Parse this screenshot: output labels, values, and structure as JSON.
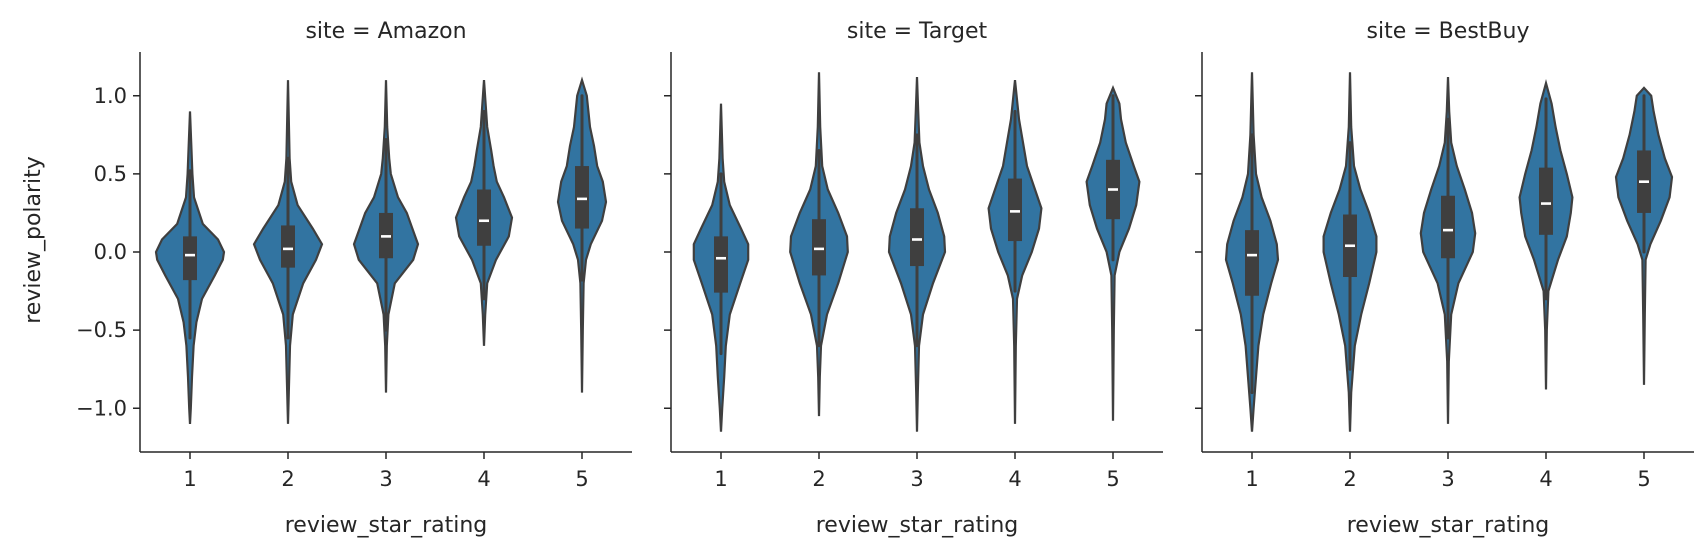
{
  "chart_data": {
    "type": "violin",
    "xlabel": "review_star_rating",
    "ylabel": "review_polarity",
    "ylim": [
      -1.28,
      1.28
    ],
    "yticks": [
      -1.0,
      -0.5,
      0.0,
      0.5,
      1.0
    ],
    "ytick_labels": [
      "−1.0",
      "−0.5",
      "0.0",
      "0.5",
      "1.0"
    ],
    "categories": [
      "1",
      "2",
      "3",
      "4",
      "5"
    ],
    "color": "#3274a1",
    "edge_color": "#3f3f3f",
    "grid": false,
    "panels": [
      {
        "title": "site = Amazon",
        "violins": [
          {
            "rating": "1",
            "min": -1.1,
            "max": 0.9,
            "q1": -0.18,
            "median": -0.02,
            "q3": 0.1,
            "whisker_low": -0.55,
            "whisker_high": 0.52,
            "profile": [
              [
                -1.1,
                0
              ],
              [
                -1.0,
                0.02
              ],
              [
                -0.8,
                0.05
              ],
              [
                -0.6,
                0.09
              ],
              [
                -0.45,
                0.16
              ],
              [
                -0.3,
                0.3
              ],
              [
                -0.15,
                0.62
              ],
              [
                -0.05,
                0.82
              ],
              [
                0.0,
                0.85
              ],
              [
                0.08,
                0.7
              ],
              [
                0.18,
                0.32
              ],
              [
                0.35,
                0.1
              ],
              [
                0.5,
                0.06
              ],
              [
                0.7,
                0.03
              ],
              [
                0.9,
                0
              ]
            ]
          },
          {
            "rating": "2",
            "min": -1.1,
            "max": 1.1,
            "q1": -0.1,
            "median": 0.02,
            "q3": 0.17,
            "whisker_low": -0.55,
            "whisker_high": 0.6,
            "profile": [
              [
                -1.1,
                0
              ],
              [
                -0.9,
                0.02
              ],
              [
                -0.6,
                0.05
              ],
              [
                -0.4,
                0.12
              ],
              [
                -0.2,
                0.38
              ],
              [
                -0.05,
                0.7
              ],
              [
                0.05,
                0.85
              ],
              [
                0.15,
                0.62
              ],
              [
                0.3,
                0.24
              ],
              [
                0.45,
                0.08
              ],
              [
                0.6,
                0.04
              ],
              [
                0.85,
                0.02
              ],
              [
                1.1,
                0
              ]
            ]
          },
          {
            "rating": "3",
            "min": -0.9,
            "max": 1.1,
            "q1": -0.04,
            "median": 0.1,
            "q3": 0.25,
            "whisker_low": -0.5,
            "whisker_high": 0.72,
            "profile": [
              [
                -0.9,
                0
              ],
              [
                -0.6,
                0.02
              ],
              [
                -0.4,
                0.06
              ],
              [
                -0.2,
                0.22
              ],
              [
                -0.05,
                0.68
              ],
              [
                0.05,
                0.8
              ],
              [
                0.15,
                0.66
              ],
              [
                0.25,
                0.52
              ],
              [
                0.35,
                0.3
              ],
              [
                0.5,
                0.12
              ],
              [
                0.6,
                0.08
              ],
              [
                0.8,
                0.03
              ],
              [
                1.1,
                0
              ]
            ]
          },
          {
            "rating": "4",
            "min": -0.6,
            "max": 1.1,
            "q1": 0.04,
            "median": 0.2,
            "q3": 0.4,
            "whisker_low": -0.3,
            "whisker_high": 0.9,
            "profile": [
              [
                -0.6,
                0
              ],
              [
                -0.4,
                0.03
              ],
              [
                -0.2,
                0.08
              ],
              [
                -0.05,
                0.3
              ],
              [
                0.1,
                0.62
              ],
              [
                0.22,
                0.7
              ],
              [
                0.35,
                0.5
              ],
              [
                0.45,
                0.32
              ],
              [
                0.55,
                0.24
              ],
              [
                0.65,
                0.18
              ],
              [
                0.8,
                0.08
              ],
              [
                1.1,
                0
              ]
            ]
          },
          {
            "rating": "5",
            "min": -0.9,
            "max": 1.1,
            "q1": 0.15,
            "median": 0.34,
            "q3": 0.55,
            "whisker_low": -0.18,
            "whisker_high": 1.0,
            "profile": [
              [
                -0.9,
                0
              ],
              [
                -0.5,
                0.02
              ],
              [
                -0.2,
                0.04
              ],
              [
                -0.05,
                0.1
              ],
              [
                0.05,
                0.22
              ],
              [
                0.2,
                0.5
              ],
              [
                0.32,
                0.6
              ],
              [
                0.45,
                0.52
              ],
              [
                0.55,
                0.38
              ],
              [
                0.68,
                0.3
              ],
              [
                0.8,
                0.2
              ],
              [
                0.9,
                0.16
              ],
              [
                1.0,
                0.12
              ],
              [
                1.1,
                0
              ]
            ]
          }
        ]
      },
      {
        "title": "site = Target",
        "violins": [
          {
            "rating": "1",
            "min": -1.15,
            "max": 0.95,
            "q1": -0.26,
            "median": -0.04,
            "q3": 0.1,
            "whisker_low": -0.65,
            "whisker_high": 0.5,
            "profile": [
              [
                -1.15,
                0
              ],
              [
                -1.0,
                0.03
              ],
              [
                -0.8,
                0.08
              ],
              [
                -0.6,
                0.12
              ],
              [
                -0.4,
                0.22
              ],
              [
                -0.2,
                0.48
              ],
              [
                -0.05,
                0.68
              ],
              [
                0.05,
                0.68
              ],
              [
                0.15,
                0.5
              ],
              [
                0.3,
                0.22
              ],
              [
                0.45,
                0.08
              ],
              [
                0.6,
                0.04
              ],
              [
                0.95,
                0
              ]
            ]
          },
          {
            "rating": "2",
            "min": -1.05,
            "max": 1.15,
            "q1": -0.15,
            "median": 0.02,
            "q3": 0.21,
            "whisker_low": -0.6,
            "whisker_high": 0.65,
            "profile": [
              [
                -1.05,
                0
              ],
              [
                -0.8,
                0.02
              ],
              [
                -0.6,
                0.05
              ],
              [
                -0.4,
                0.2
              ],
              [
                -0.2,
                0.48
              ],
              [
                0.0,
                0.72
              ],
              [
                0.1,
                0.7
              ],
              [
                0.25,
                0.48
              ],
              [
                0.4,
                0.22
              ],
              [
                0.55,
                0.08
              ],
              [
                0.8,
                0.03
              ],
              [
                1.15,
                0
              ]
            ]
          },
          {
            "rating": "3",
            "min": -1.15,
            "max": 1.12,
            "q1": -0.09,
            "median": 0.08,
            "q3": 0.28,
            "whisker_low": -0.6,
            "whisker_high": 0.75,
            "profile": [
              [
                -1.15,
                0
              ],
              [
                -0.9,
                0.02
              ],
              [
                -0.6,
                0.05
              ],
              [
                -0.4,
                0.15
              ],
              [
                -0.2,
                0.4
              ],
              [
                0.0,
                0.7
              ],
              [
                0.1,
                0.68
              ],
              [
                0.25,
                0.52
              ],
              [
                0.4,
                0.3
              ],
              [
                0.55,
                0.15
              ],
              [
                0.7,
                0.06
              ],
              [
                0.9,
                0.03
              ],
              [
                1.12,
                0
              ]
            ]
          },
          {
            "rating": "4",
            "min": -1.1,
            "max": 1.1,
            "q1": 0.07,
            "median": 0.26,
            "q3": 0.47,
            "whisker_low": -0.25,
            "whisker_high": 0.9,
            "profile": [
              [
                -1.1,
                0
              ],
              [
                -0.6,
                0.02
              ],
              [
                -0.3,
                0.05
              ],
              [
                -0.15,
                0.18
              ],
              [
                0.0,
                0.42
              ],
              [
                0.15,
                0.6
              ],
              [
                0.28,
                0.66
              ],
              [
                0.4,
                0.5
              ],
              [
                0.55,
                0.3
              ],
              [
                0.7,
                0.2
              ],
              [
                0.85,
                0.1
              ],
              [
                1.1,
                0
              ]
            ]
          },
          {
            "rating": "5",
            "min": -1.08,
            "max": 1.05,
            "q1": 0.21,
            "median": 0.4,
            "q3": 0.59,
            "whisker_low": -0.05,
            "whisker_high": 1.0,
            "profile": [
              [
                -1.08,
                0
              ],
              [
                -0.5,
                0.02
              ],
              [
                -0.15,
                0.04
              ],
              [
                0.0,
                0.16
              ],
              [
                0.15,
                0.4
              ],
              [
                0.3,
                0.58
              ],
              [
                0.45,
                0.66
              ],
              [
                0.55,
                0.52
              ],
              [
                0.7,
                0.32
              ],
              [
                0.85,
                0.2
              ],
              [
                0.95,
                0.16
              ],
              [
                1.05,
                0
              ]
            ]
          }
        ]
      },
      {
        "title": "site = BestBuy",
        "violins": [
          {
            "rating": "1",
            "min": -1.15,
            "max": 1.15,
            "q1": -0.28,
            "median": -0.02,
            "q3": 0.14,
            "whisker_low": -0.9,
            "whisker_high": 0.75,
            "profile": [
              [
                -1.15,
                0
              ],
              [
                -1.0,
                0.04
              ],
              [
                -0.8,
                0.1
              ],
              [
                -0.6,
                0.16
              ],
              [
                -0.4,
                0.28
              ],
              [
                -0.2,
                0.48
              ],
              [
                -0.05,
                0.65
              ],
              [
                0.05,
                0.62
              ],
              [
                0.2,
                0.46
              ],
              [
                0.35,
                0.24
              ],
              [
                0.5,
                0.1
              ],
              [
                0.75,
                0.04
              ],
              [
                1.15,
                0
              ]
            ]
          },
          {
            "rating": "2",
            "min": -1.15,
            "max": 1.15,
            "q1": -0.16,
            "median": 0.04,
            "q3": 0.24,
            "whisker_low": -0.75,
            "whisker_high": 0.7,
            "profile": [
              [
                -1.15,
                0
              ],
              [
                -0.9,
                0.03
              ],
              [
                -0.6,
                0.12
              ],
              [
                -0.4,
                0.28
              ],
              [
                -0.2,
                0.48
              ],
              [
                0.0,
                0.66
              ],
              [
                0.1,
                0.66
              ],
              [
                0.25,
                0.48
              ],
              [
                0.4,
                0.26
              ],
              [
                0.55,
                0.1
              ],
              [
                0.8,
                0.03
              ],
              [
                1.15,
                0
              ]
            ]
          },
          {
            "rating": "3",
            "min": -1.1,
            "max": 1.12,
            "q1": -0.04,
            "median": 0.14,
            "q3": 0.36,
            "whisker_low": -0.55,
            "whisker_high": 0.85,
            "profile": [
              [
                -1.1,
                0
              ],
              [
                -0.7,
                0.02
              ],
              [
                -0.4,
                0.08
              ],
              [
                -0.2,
                0.26
              ],
              [
                0.0,
                0.62
              ],
              [
                0.12,
                0.68
              ],
              [
                0.25,
                0.6
              ],
              [
                0.4,
                0.42
              ],
              [
                0.55,
                0.22
              ],
              [
                0.7,
                0.08
              ],
              [
                0.9,
                0.03
              ],
              [
                1.12,
                0
              ]
            ]
          },
          {
            "rating": "4",
            "min": -0.88,
            "max": 1.08,
            "q1": 0.11,
            "median": 0.31,
            "q3": 0.54,
            "whisker_low": -0.3,
            "whisker_high": 0.98,
            "profile": [
              [
                -0.88,
                0
              ],
              [
                -0.5,
                0.02
              ],
              [
                -0.25,
                0.06
              ],
              [
                -0.05,
                0.3
              ],
              [
                0.1,
                0.52
              ],
              [
                0.25,
                0.62
              ],
              [
                0.35,
                0.66
              ],
              [
                0.5,
                0.52
              ],
              [
                0.65,
                0.36
              ],
              [
                0.8,
                0.24
              ],
              [
                0.95,
                0.14
              ],
              [
                1.08,
                0
              ]
            ]
          },
          {
            "rating": "5",
            "min": -0.85,
            "max": 1.05,
            "q1": 0.25,
            "median": 0.45,
            "q3": 0.65,
            "whisker_low": 0.0,
            "whisker_high": 1.0,
            "profile": [
              [
                -0.85,
                0
              ],
              [
                -0.4,
                0.02
              ],
              [
                -0.05,
                0.04
              ],
              [
                0.05,
                0.16
              ],
              [
                0.2,
                0.42
              ],
              [
                0.35,
                0.64
              ],
              [
                0.48,
                0.7
              ],
              [
                0.6,
                0.52
              ],
              [
                0.75,
                0.36
              ],
              [
                0.9,
                0.24
              ],
              [
                1.0,
                0.18
              ],
              [
                1.05,
                0
              ]
            ]
          }
        ]
      }
    ]
  }
}
